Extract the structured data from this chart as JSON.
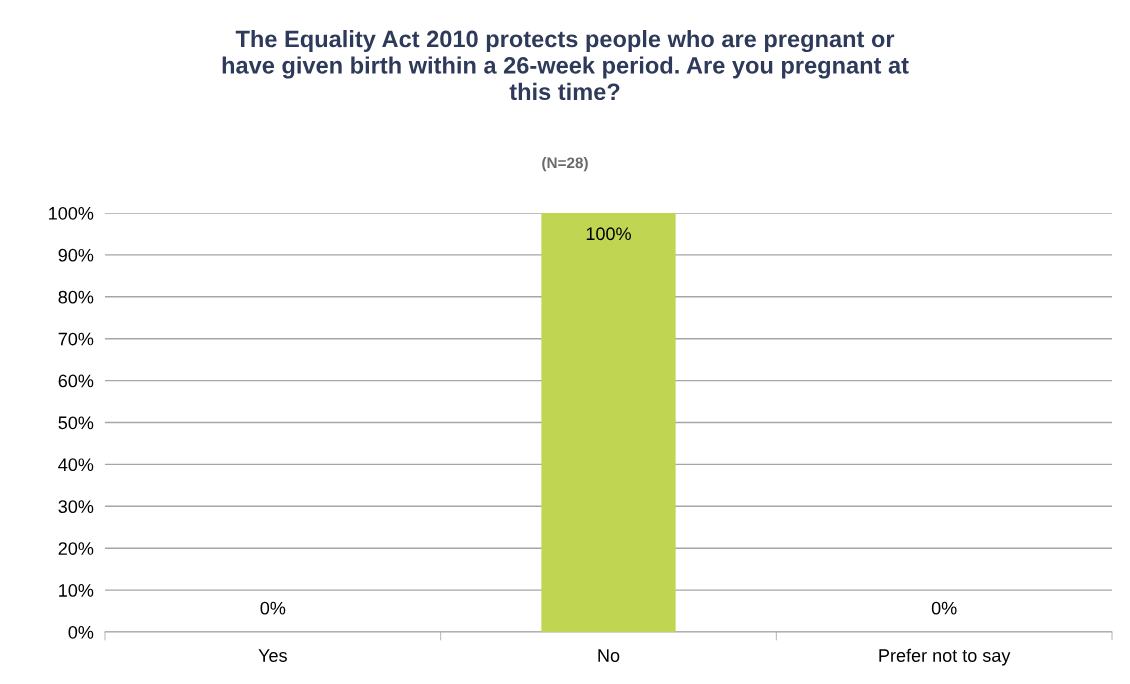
{
  "chart_data": {
    "type": "bar",
    "title": "The Equality Act 2010 protects people who are pregnant or\nhave given birth within a 26-week period. Are you pregnant at\nthis time?",
    "subtitle": "(N=28)",
    "categories": [
      "Yes",
      "No",
      "Prefer not to say"
    ],
    "values": [
      0,
      100,
      0
    ],
    "color": "#c0d652",
    "value_labels": [
      "0%",
      "100%",
      "0%"
    ],
    "ylim": [
      0,
      100
    ],
    "yticks": [
      {
        "value": 0,
        "label": "0%"
      },
      {
        "value": 10,
        "label": "10%"
      },
      {
        "value": 20,
        "label": "20%"
      },
      {
        "value": 30,
        "label": "30%"
      },
      {
        "value": 40,
        "label": "40%"
      },
      {
        "value": 50,
        "label": "50%"
      },
      {
        "value": 60,
        "label": "60%"
      },
      {
        "value": 70,
        "label": "70%"
      },
      {
        "value": 80,
        "label": "80%"
      },
      {
        "value": 90,
        "label": "90%"
      },
      {
        "value": 100,
        "label": "100%"
      }
    ],
    "grid": "y",
    "legend": false
  }
}
